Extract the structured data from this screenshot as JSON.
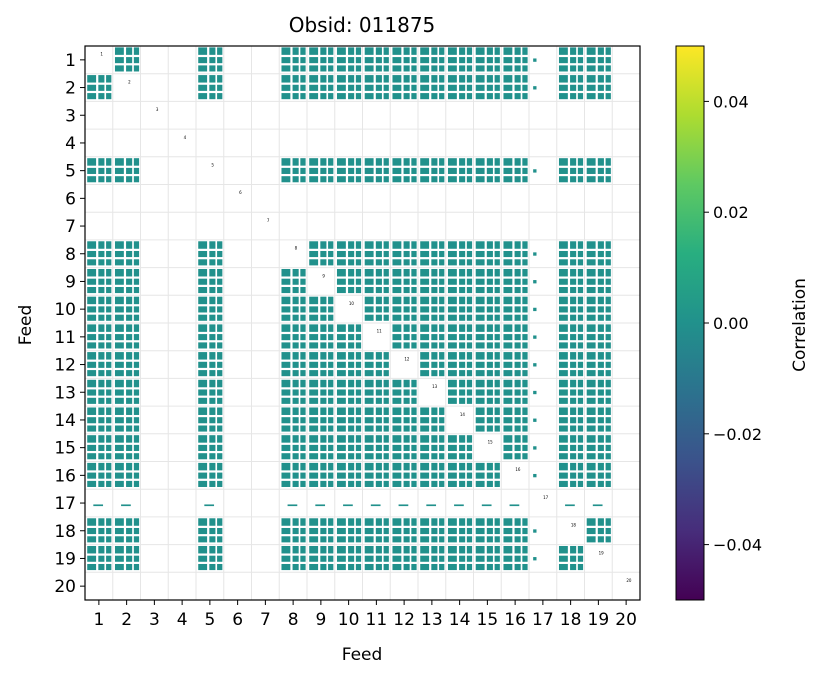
{
  "chart_data": {
    "type": "heatmap",
    "title": "Obsid: 011875",
    "xlabel": "Feed",
    "ylabel": "Feed",
    "x_ticks": [
      "1",
      "2",
      "3",
      "4",
      "5",
      "6",
      "7",
      "8",
      "9",
      "10",
      "11",
      "12",
      "13",
      "14",
      "15",
      "16",
      "17",
      "18",
      "19",
      "20"
    ],
    "y_ticks": [
      "1",
      "2",
      "3",
      "4",
      "5",
      "6",
      "7",
      "8",
      "9",
      "10",
      "11",
      "12",
      "13",
      "14",
      "15",
      "16",
      "17",
      "18",
      "19",
      "20"
    ],
    "xlim": [
      0.5,
      20.5
    ],
    "ylim": [
      20.5,
      0.5
    ],
    "grid": true,
    "colormap": "viridis",
    "colorbar": {
      "label": "Correlation",
      "min": -0.05,
      "max": 0.05,
      "ticks": [
        -0.04,
        -0.02,
        0.0,
        0.02,
        0.04
      ],
      "tick_labels": [
        "−0.04",
        "−0.02",
        "0.00",
        "0.02",
        "0.04"
      ]
    },
    "cell_color": "#21918c",
    "active_feeds": [
      1,
      2,
      5,
      8,
      9,
      10,
      11,
      12,
      13,
      14,
      15,
      16,
      18,
      19
    ],
    "sparse_feeds": [
      17
    ],
    "empty_feeds": [
      3,
      4,
      6,
      7,
      20
    ],
    "typical_correlation": 0.0
  }
}
